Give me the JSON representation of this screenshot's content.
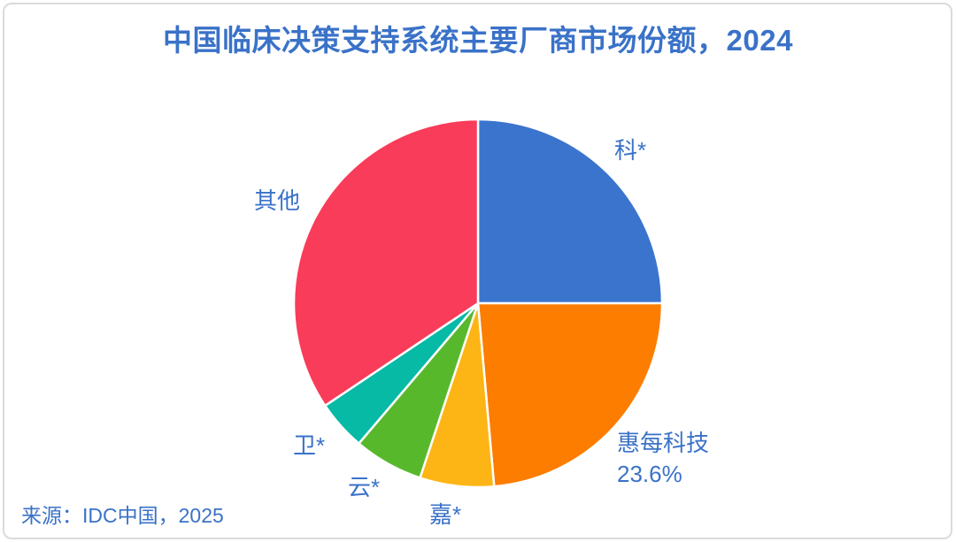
{
  "title": "中国临床决策支持系统主要厂商市场份额，2024",
  "source": "来源：IDC中国，2025",
  "colors": {
    "text_blue": "#3a72c8",
    "border_gray": "#d9dbdd",
    "background": "#ffffff"
  },
  "chart_data": {
    "type": "pie",
    "title": "中国临床决策支持系统主要厂商市场份额，2024",
    "source": "来源：IDC中国，2025",
    "start_angle_deg": 0,
    "clockwise": true,
    "units": "percent",
    "slices": [
      {
        "label": "科*",
        "value": 25.0,
        "color": "#3a74cd",
        "value_label": ""
      },
      {
        "label": "惠每科技",
        "value": 23.6,
        "color": "#fc7d00",
        "value_label": "23.6%"
      },
      {
        "label": "嘉*",
        "value": 6.5,
        "color": "#fdb515",
        "value_label": ""
      },
      {
        "label": "云*",
        "value": 6.1,
        "color": "#58b82c",
        "value_label": ""
      },
      {
        "label": "卫*",
        "value": 4.4,
        "color": "#07baa5",
        "value_label": ""
      },
      {
        "label": "其他",
        "value": 34.4,
        "color": "#f93c59",
        "value_label": ""
      }
    ]
  }
}
